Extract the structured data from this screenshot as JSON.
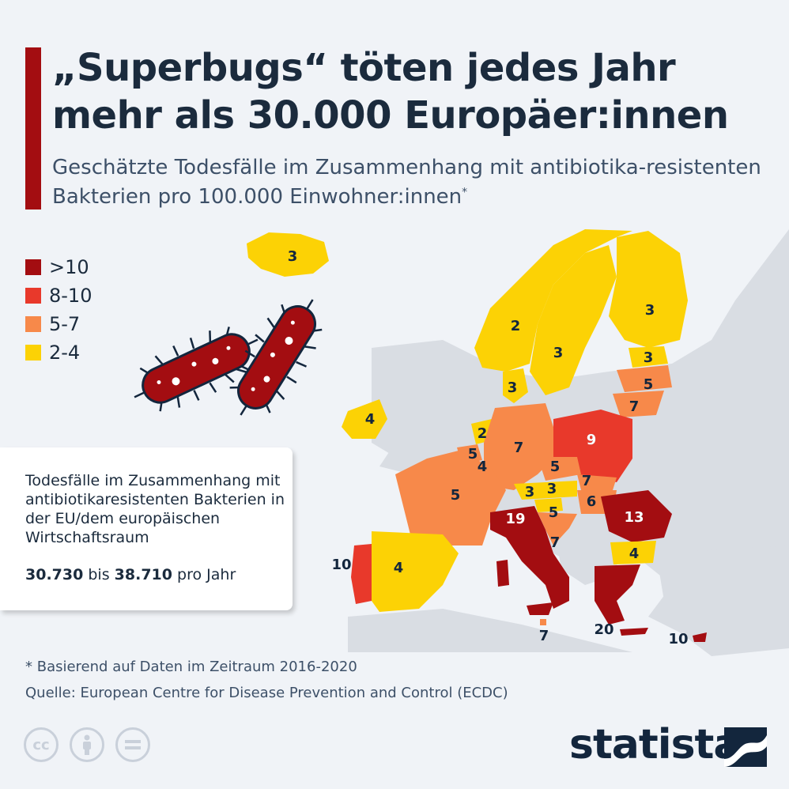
{
  "header": {
    "title": "„Superbugs“ töten jedes Jahr mehr als 30.000 Europäer:innen",
    "subtitle": "Geschätzte Todesfälle im Zusammenhang mit antibiotika-resistenten Bakterien pro 100.000 Einwohner:innen",
    "subtitle_mark": "*"
  },
  "legend": [
    {
      "label": ">10",
      "color": "#a30d11"
    },
    {
      "label": "8-10",
      "color": "#e8392b"
    },
    {
      "label": "5-7",
      "color": "#f7894a"
    },
    {
      "label": "2-4",
      "color": "#fcd205"
    }
  ],
  "info_box": {
    "text": "Todesfälle im Zusammenhang mit antibiotikaresistenten Bakterien in der EU/dem europäischen Wirtschaftsraum",
    "range_low": "30.730",
    "range_mid": "bis",
    "range_high": "38.710",
    "range_unit": "pro Jahr"
  },
  "map_values": {
    "iceland": "3",
    "norway": "2",
    "sweden": "3",
    "finland": "3",
    "estonia": "3",
    "latvia": "5",
    "lithuania": "7",
    "denmark": "3",
    "ireland": "4",
    "netherlands": "2",
    "belgium": "5",
    "luxembourg": "4",
    "germany": "7",
    "poland": "9",
    "czechia": "5",
    "slovakia": "7",
    "austria": "3",
    "hungary": "6",
    "slovenia": "3",
    "croatia": "5",
    "romania": "13",
    "bulgaria": "4",
    "france": "5",
    "italy": "19",
    "adriatic": "7",
    "portugal": "10",
    "spain": "4",
    "malta": "7",
    "greece": "20",
    "cyprus": "10"
  },
  "footer": {
    "footnote": "* Basierend auf Daten im Zeitraum 2016-2020",
    "source": "Quelle: European Centre for Disease Prevention and Control (ECDC)",
    "brand": "statista",
    "cc_icons": [
      "cc-icon",
      "by-icon",
      "nd-icon"
    ]
  }
}
